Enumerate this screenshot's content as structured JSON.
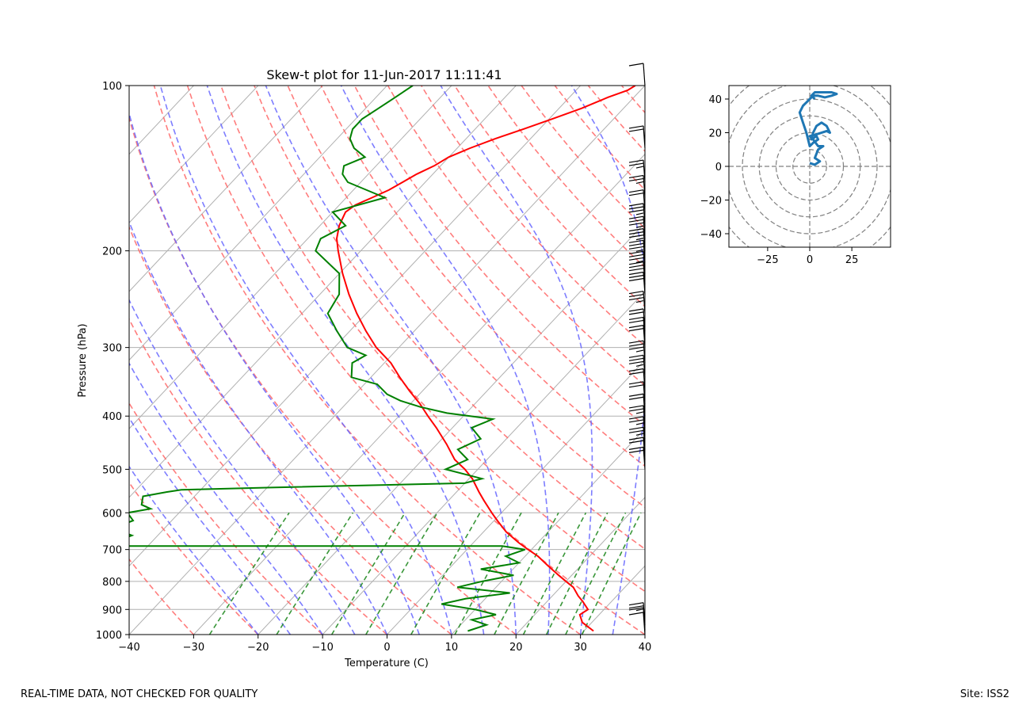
{
  "footer": {
    "disclaimer": "REAL-TIME DATA, NOT CHECKED FOR QUALITY",
    "site": "Site: ISS2"
  },
  "chart_data": [
    {
      "type": "line",
      "title": "Skew-t plot for 11-Jun-2017 11:11:41",
      "xlabel": "Temperature (C)",
      "ylabel": "Pressure (hPa)",
      "xlim": [
        -40,
        40
      ],
      "ylim": [
        1000,
        100
      ],
      "y_scale": "log",
      "x_ticks": [
        -40,
        -30,
        -20,
        -10,
        0,
        10,
        20,
        30,
        40
      ],
      "y_ticks": [
        1000,
        900,
        800,
        700,
        600,
        500,
        400,
        300,
        200,
        100
      ],
      "grid": true,
      "colors": {
        "temperature": "#ff0000",
        "dewpoint": "#008000",
        "dry_adiabats": "#ff6666",
        "moist_adiabats": "#6666ff",
        "mixing_ratio": "#228b22",
        "isotherms": "#b0b0b0"
      },
      "series": [
        {
          "key": "temperature",
          "pressure": [
            985,
            950,
            920,
            900,
            870,
            850,
            820,
            800,
            780,
            750,
            720,
            700,
            680,
            650,
            620,
            600,
            570,
            550,
            520,
            500,
            480,
            450,
            420,
            400,
            380,
            360,
            340,
            320,
            300,
            280,
            260,
            240,
            220,
            200,
            190,
            180,
            175,
            170,
            165,
            160,
            155,
            150,
            145,
            140,
            135,
            130,
            125,
            120,
            115,
            110,
            105,
            102,
            100
          ],
          "temp_c": [
            31.5,
            28.5,
            27.0,
            27.5,
            25.5,
            24.0,
            22.0,
            20.0,
            18.0,
            15.0,
            12.0,
            9.5,
            7.0,
            3.5,
            0.5,
            -1.5,
            -4.5,
            -6.5,
            -9.5,
            -12.0,
            -15.0,
            -18.5,
            -22.5,
            -25.5,
            -28.5,
            -32.0,
            -35.5,
            -39.0,
            -43.5,
            -47.5,
            -51.5,
            -55.5,
            -59.5,
            -63.5,
            -65.5,
            -67.0,
            -67.5,
            -68.0,
            -67.5,
            -66.0,
            -64.5,
            -63.5,
            -62.5,
            -61.0,
            -60.0,
            -58.0,
            -55.5,
            -52.5,
            -49.5,
            -46.5,
            -44.0,
            -42.0,
            -41.5
          ]
        },
        {
          "key": "dewpoint",
          "pressure": [
            985,
            960,
            940,
            920,
            900,
            880,
            860,
            840,
            820,
            800,
            780,
            760,
            740,
            720,
            700,
            690,
            690,
            680,
            660,
            640,
            620,
            600,
            590,
            580,
            560,
            550,
            545,
            540,
            530,
            520,
            500,
            480,
            460,
            440,
            420,
            405,
            395,
            385,
            375,
            365,
            350,
            340,
            320,
            310,
            300,
            280,
            260,
            240,
            220,
            200,
            190,
            180,
            170,
            160,
            150,
            145,
            140,
            135,
            130,
            125,
            120,
            115,
            110,
            105,
            100
          ],
          "temp_c": [
            12.0,
            14.0,
            11.0,
            14.0,
            10.0,
            4.0,
            7.0,
            13.0,
            4.0,
            7.0,
            11.0,
            5.0,
            10.0,
            7.0,
            9.0,
            5.0,
            -55.0,
            -56.0,
            -54.0,
            -58.0,
            -56.0,
            -58.0,
            -55.0,
            -57.0,
            -58.0,
            -55.0,
            -53.0,
            -40.0,
            -10.0,
            -8.0,
            -15.0,
            -13.0,
            -16.0,
            -14.0,
            -17.0,
            -15.0,
            -23.0,
            -28.0,
            -32.0,
            -35.0,
            -38.0,
            -43.0,
            -45.0,
            -44.0,
            -48.0,
            -52.0,
            -56.0,
            -57.0,
            -60.0,
            -67.0,
            -68.0,
            -66.0,
            -70.0,
            -64.0,
            -72.0,
            -74.0,
            -75.0,
            -73.0,
            -76.0,
            -78.0,
            -79.0,
            -79.0,
            -78.0,
            -77.0,
            -76.0
          ]
        }
      ],
      "wind_barbs": {
        "pressure": [
          1000,
          980,
          960,
          500,
          480,
          460,
          440,
          420,
          400,
          380,
          360,
          340,
          320,
          300,
          290,
          280,
          260,
          240,
          230,
          220,
          210,
          200,
          190,
          180,
          170,
          160,
          150,
          130,
          100
        ],
        "speed_kt": [
          10,
          10,
          15,
          20,
          20,
          15,
          15,
          15,
          20,
          20,
          20,
          25,
          25,
          20,
          20,
          20,
          25,
          30,
          30,
          25,
          25,
          25,
          25,
          25,
          20,
          15,
          15,
          20,
          10
        ]
      }
    },
    {
      "type": "line",
      "title": "",
      "xlim": [
        -48,
        48
      ],
      "ylim": [
        -48,
        48
      ],
      "x_ticks": [
        -25,
        0,
        25
      ],
      "y_ticks": [
        -40,
        -20,
        0,
        20,
        40
      ],
      "grid": false,
      "rings": [
        10,
        20,
        30,
        40,
        50,
        60
      ],
      "line_color": "#1f77b4",
      "u": [
        0,
        3,
        6,
        3,
        5,
        8,
        5,
        2,
        0,
        4,
        10,
        12,
        10,
        7,
        4,
        2,
        1,
        4,
        5,
        2,
        0,
        -2,
        -4,
        -6,
        -4,
        -2,
        0,
        2,
        5,
        9,
        13,
        16,
        13,
        8,
        3,
        1,
        3
      ],
      "v": [
        2,
        1,
        3,
        5,
        10,
        12,
        12,
        16,
        18,
        19,
        21,
        20,
        24,
        26,
        24,
        20,
        16,
        18,
        16,
        14,
        12,
        20,
        26,
        32,
        36,
        38,
        40,
        42,
        42,
        41,
        42,
        43,
        44,
        44,
        44,
        42,
        40
      ]
    }
  ]
}
